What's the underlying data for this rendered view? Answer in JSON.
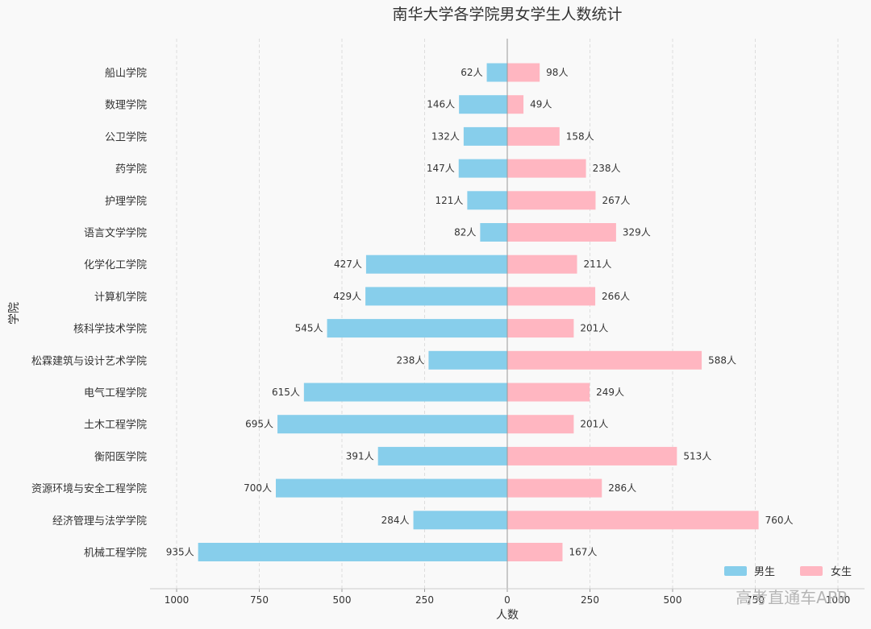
{
  "chart_data": {
    "type": "bar",
    "orientation": "horizontal-diverging",
    "title": "南华大学各学院男女学生人数统计",
    "xlabel": "人数",
    "ylabel": "学院",
    "unit_suffix": "人",
    "xlim": [
      -1075,
      1075
    ],
    "xticks": [
      -1000,
      -750,
      -500,
      -250,
      0,
      250,
      500,
      750,
      1000
    ],
    "xtick_labels": [
      "1000",
      "750",
      "500",
      "250",
      "0",
      "250",
      "500",
      "750",
      "1000"
    ],
    "grid": "vertical dashed",
    "legend_position": "bottom-right",
    "categories": [
      "船山学院",
      "数理学院",
      "公卫学院",
      "药学院",
      "护理学院",
      "语言文学学院",
      "化学化工学院",
      "计算机学院",
      "核科学技术学院",
      "松霖建筑与设计艺术学院",
      "电气工程学院",
      "土木工程学院",
      "衡阳医学院",
      "资源环境与安全工程学院",
      "经济管理与法学学院",
      "机械工程学院"
    ],
    "series": [
      {
        "name": "男生",
        "color": "#87ceeb",
        "direction": "left",
        "values": [
          62,
          146,
          132,
          147,
          121,
          82,
          427,
          429,
          545,
          238,
          615,
          695,
          391,
          700,
          284,
          935
        ]
      },
      {
        "name": "女生",
        "color": "#ffb6c1",
        "direction": "right",
        "values": [
          98,
          49,
          158,
          238,
          267,
          329,
          211,
          266,
          201,
          588,
          249,
          201,
          513,
          286,
          760,
          167
        ]
      }
    ]
  },
  "watermark": "高考直通车APP"
}
